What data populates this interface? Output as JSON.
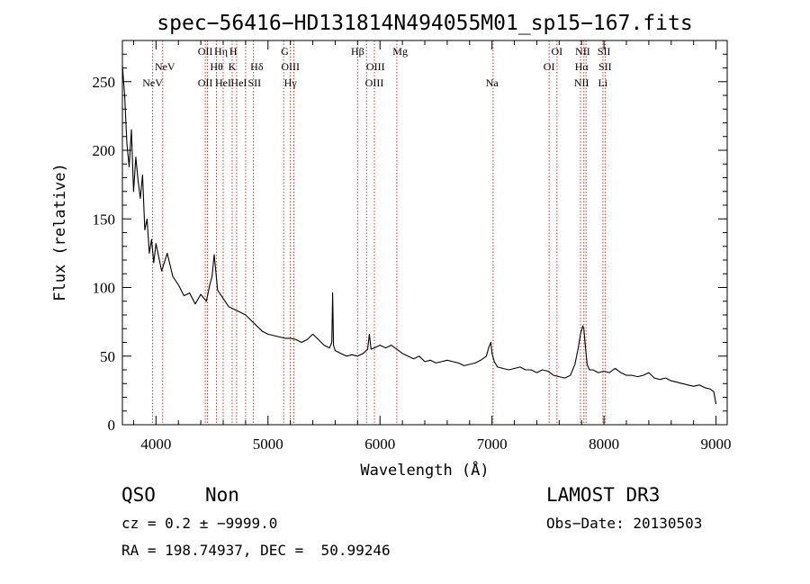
{
  "chart_data": {
    "type": "line",
    "title": "spec−56416−HD131814N494055M01_sp15−167.fits",
    "xlabel": "Wavelength (Å)",
    "ylabel": "Flux (relative)",
    "xlim": [
      3700,
      9100
    ],
    "ylim": [
      0,
      280
    ],
    "xticks": [
      4000,
      5000,
      6000,
      7000,
      8000,
      9000
    ],
    "yticks": [
      0,
      50,
      100,
      150,
      200,
      250
    ],
    "grid": false,
    "series": [
      {
        "x": [
          3700,
          3720,
          3740,
          3760,
          3780,
          3800,
          3820,
          3840,
          3860,
          3880,
          3900,
          3920,
          3940,
          3960,
          3980,
          4000,
          4050,
          4100,
          4150,
          4200,
          4250,
          4300,
          4350,
          4400,
          4450,
          4480,
          4500,
          4520,
          4530,
          4550,
          4600,
          4650,
          4700,
          4750,
          4800,
          4850,
          4900,
          4950,
          5000,
          5050,
          5100,
          5150,
          5200,
          5250,
          5300,
          5350,
          5400,
          5450,
          5500,
          5550,
          5570,
          5577,
          5585,
          5600,
          5650,
          5700,
          5750,
          5800,
          5850,
          5890,
          5905,
          5920,
          5950,
          6000,
          6050,
          6100,
          6150,
          6200,
          6250,
          6300,
          6350,
          6400,
          6450,
          6500,
          6550,
          6600,
          6650,
          6700,
          6750,
          6800,
          6850,
          6900,
          6950,
          6970,
          6990,
          7000,
          7020,
          7050,
          7100,
          7150,
          7200,
          7250,
          7300,
          7350,
          7400,
          7450,
          7500,
          7550,
          7600,
          7650,
          7700,
          7740,
          7770,
          7790,
          7810,
          7820,
          7830,
          7850,
          7870,
          7900,
          7950,
          8000,
          8050,
          8080,
          8100,
          8150,
          8200,
          8250,
          8300,
          8350,
          8400,
          8450,
          8500,
          8550,
          8600,
          8650,
          8700,
          8750,
          8800,
          8850,
          8900,
          8950,
          8980,
          9000
        ],
        "y": [
          262,
          240,
          205,
          188,
          215,
          170,
          195,
          178,
          165,
          182,
          142,
          150,
          125,
          135,
          118,
          132,
          112,
          125,
          108,
          102,
          94,
          96,
          88,
          95,
          90,
          102,
          108,
          124,
          115,
          98,
          92,
          86,
          84,
          82,
          80,
          76,
          72,
          68,
          66,
          65,
          64,
          63,
          63,
          62,
          60,
          62,
          66,
          62,
          58,
          56,
          60,
          96,
          58,
          54,
          52,
          50,
          51,
          50,
          52,
          55,
          66,
          55,
          56,
          58,
          56,
          58,
          55,
          52,
          50,
          48,
          50,
          46,
          47,
          45,
          46,
          47,
          46,
          45,
          43,
          44,
          45,
          47,
          50,
          56,
          60,
          52,
          46,
          42,
          41,
          40,
          41,
          42,
          40,
          40,
          38,
          40,
          39,
          36,
          35,
          34,
          36,
          44,
          56,
          66,
          72,
          70,
          60,
          44,
          40,
          40,
          38,
          39,
          38,
          40,
          41,
          38,
          36,
          36,
          35,
          36,
          38,
          34,
          33,
          34,
          32,
          31,
          30,
          29,
          28,
          29,
          27,
          26,
          24,
          15
        ]
      }
    ],
    "annotations": [
      {
        "text": "NeV",
        "x": 3970,
        "level": 3
      },
      {
        "text": "NeV",
        "x": 4080,
        "level": 2
      },
      {
        "text": "OII",
        "x": 4440,
        "level": 1
      },
      {
        "text": "OII",
        "x": 4440,
        "level": 3
      },
      {
        "text": "Hη",
        "x": 4580,
        "level": 1
      },
      {
        "text": "Hθ",
        "x": 4540,
        "level": 2
      },
      {
        "text": "HeI",
        "x": 4600,
        "level": 3
      },
      {
        "text": "H",
        "x": 4690,
        "level": 1
      },
      {
        "text": "K",
        "x": 4680,
        "level": 2
      },
      {
        "text": "HeI",
        "x": 4740,
        "level": 3
      },
      {
        "text": "Hδ",
        "x": 4900,
        "level": 2
      },
      {
        "text": "SII",
        "x": 4880,
        "level": 3
      },
      {
        "text": "G",
        "x": 5150,
        "level": 1
      },
      {
        "text": "OIII",
        "x": 5200,
        "level": 2
      },
      {
        "text": "Hγ",
        "x": 5200,
        "level": 3
      },
      {
        "text": "Hβ",
        "x": 5800,
        "level": 1
      },
      {
        "text": "OIII",
        "x": 5960,
        "level": 2
      },
      {
        "text": "OIII",
        "x": 5950,
        "level": 3
      },
      {
        "text": "Mg",
        "x": 6180,
        "level": 1
      },
      {
        "text": "Na",
        "x": 7000,
        "level": 3
      },
      {
        "text": "OI",
        "x": 7580,
        "level": 1
      },
      {
        "text": "OI",
        "x": 7510,
        "level": 2
      },
      {
        "text": "NII",
        "x": 7810,
        "level": 1
      },
      {
        "text": "Hα",
        "x": 7800,
        "level": 2
      },
      {
        "text": "NII",
        "x": 7800,
        "level": 3
      },
      {
        "text": "SII",
        "x": 8000,
        "level": 1
      },
      {
        "text": "SII",
        "x": 8010,
        "level": 2
      },
      {
        "text": "Li",
        "x": 7990,
        "level": 3
      }
    ],
    "line_markers": [
      3970,
      4060,
      4440,
      4460,
      4540,
      4600,
      4680,
      4720,
      4800,
      4870,
      5140,
      5200,
      5230,
      5800,
      5880,
      5950,
      6150,
      7010,
      7510,
      7580,
      7790,
      7820,
      7840,
      7990,
      8010
    ]
  },
  "info": {
    "class": "QSO",
    "subclass": "Non",
    "survey": "LAMOST DR3",
    "cz": "cz = 0.2 ± −9999.0",
    "obs_date": "Obs−Date: 20130503",
    "coords": "RA = 198.74937, DEC =  50.99246"
  }
}
